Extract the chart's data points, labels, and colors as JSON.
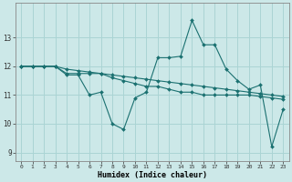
{
  "xlabel": "Humidex (Indice chaleur)",
  "bg_color": "#cce8e8",
  "grid_color": "#aad4d4",
  "line_color": "#1a7070",
  "xlim": [
    -0.5,
    23.5
  ],
  "ylim": [
    8.7,
    14.2
  ],
  "yticks": [
    9,
    10,
    11,
    12,
    13
  ],
  "xticks": [
    0,
    1,
    2,
    3,
    4,
    5,
    6,
    7,
    8,
    9,
    10,
    11,
    12,
    13,
    14,
    15,
    16,
    17,
    18,
    19,
    20,
    21,
    22,
    23
  ],
  "series": [
    [
      12.0,
      12.0,
      12.0,
      12.0,
      11.7,
      11.7,
      11.0,
      11.1,
      10.0,
      9.8,
      10.9,
      11.1,
      12.3,
      12.3,
      12.35,
      13.6,
      12.75,
      12.75,
      11.9,
      11.5,
      11.2,
      11.35,
      9.2,
      10.5
    ],
    [
      12.0,
      12.0,
      12.0,
      12.0,
      11.75,
      11.75,
      11.75,
      11.75,
      11.6,
      11.5,
      11.4,
      11.3,
      11.3,
      11.2,
      11.1,
      11.1,
      11.0,
      11.0,
      11.0,
      11.0,
      11.0,
      10.95,
      10.9,
      10.85
    ],
    [
      12.0,
      12.0,
      12.0,
      12.0,
      11.9,
      11.85,
      11.8,
      11.75,
      11.7,
      11.65,
      11.6,
      11.55,
      11.5,
      11.45,
      11.4,
      11.35,
      11.3,
      11.25,
      11.2,
      11.15,
      11.1,
      11.05,
      11.0,
      10.95
    ]
  ]
}
